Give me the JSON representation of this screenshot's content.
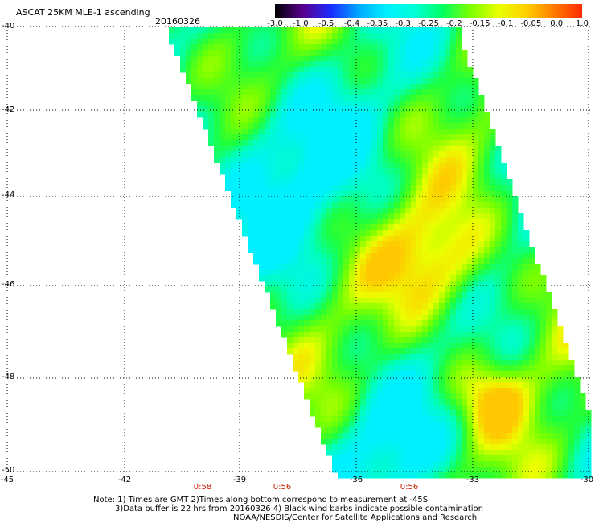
{
  "header": {
    "title": "ASCAT 25KM MLE-1 ascending",
    "date": "20160326"
  },
  "colorbar": {
    "labels": [
      "-3.0",
      "-1.0",
      "-0.5",
      "-0.4",
      "-0.35",
      "-0.3",
      "-0.25",
      "-0.2",
      "-0.15",
      "-0.1",
      "-0.05",
      "0.0",
      "1.0"
    ],
    "colors": [
      "#000000",
      "#5a0090",
      "#1a2bff",
      "#00a8ff",
      "#00f0ff",
      "#00ffd8",
      "#00ff60",
      "#7cff00",
      "#e8ff00",
      "#ffd000",
      "#ff7a00",
      "#ff2a00"
    ]
  },
  "axes": {
    "lat_labels": [
      "-40",
      "-42",
      "-44",
      "-46",
      "-48",
      "-50"
    ],
    "lat_values": [
      -40,
      -42,
      -44,
      -46,
      -48,
      -50
    ],
    "lon_labels": [
      "-45",
      "-42",
      "-39",
      "-36",
      "-33",
      "-30"
    ],
    "lon_values": [
      -45,
      -42,
      -39,
      -36,
      -33,
      -30
    ]
  },
  "times": [
    "0:58",
    "0:56",
    "0:56"
  ],
  "notes": {
    "line1": "Note: 1) Times are GMT 2)Times along bottom correspond to measurement at -45S",
    "line2": "3)Data buffer is 22 hrs from 20160326 4) Black wind barbs indicate possible contamination",
    "line3": "NOAA/NESDIS/Center for Satellite Applications and Research"
  },
  "swath": {
    "fill_color_base": "#1fff3c"
  }
}
